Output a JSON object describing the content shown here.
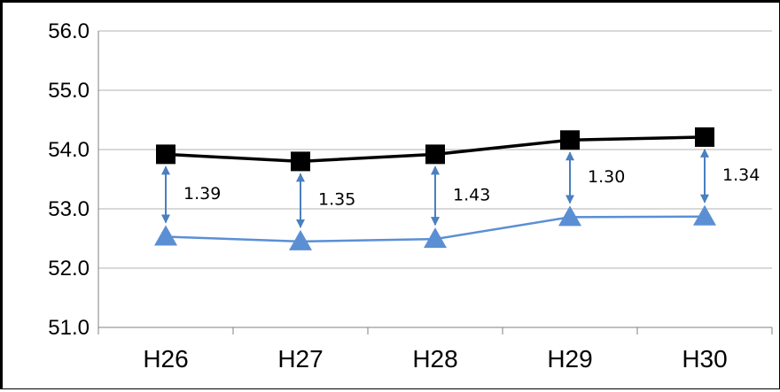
{
  "chart_data": {
    "type": "line",
    "title": "",
    "xlabel": "",
    "ylabel": "",
    "categories": [
      "H26",
      "H27",
      "H28",
      "H29",
      "H30"
    ],
    "y_ticks": [
      "51.0",
      "52.0",
      "53.0",
      "54.0",
      "55.0",
      "56.0"
    ],
    "ylim": [
      51.0,
      56.0
    ],
    "grid": "horizontal",
    "series": [
      {
        "values": [
          53.92,
          53.8,
          53.92,
          54.16,
          54.21
        ],
        "color": "#000000",
        "marker": "square"
      },
      {
        "values": [
          52.53,
          52.45,
          52.49,
          52.86,
          52.87
        ],
        "color": "#5b8fd4",
        "marker": "triangle"
      }
    ],
    "differences": [
      "1.39",
      "1.35",
      "1.43",
      "1.30",
      "1.34"
    ],
    "difference_arrow_color": "#4a7fc0"
  }
}
